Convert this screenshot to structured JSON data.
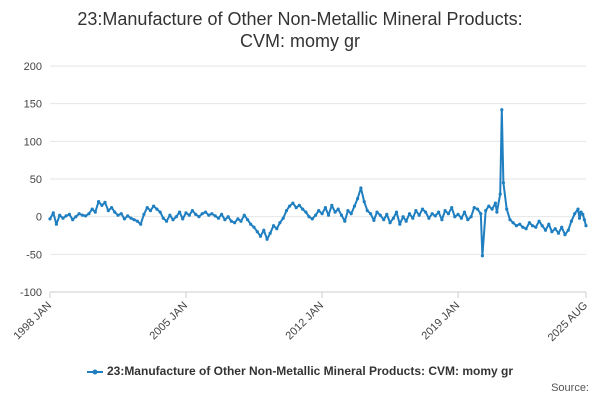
{
  "chart_data": {
    "type": "line",
    "title_lines": [
      "23:Manufacture of Other Non-Metallic Mineral Products:",
      "CVM: momy gr"
    ],
    "xlabel": "",
    "ylabel": "",
    "ylim": [
      -100,
      200
    ],
    "yticks": [
      -100,
      -50,
      0,
      50,
      100,
      150,
      200
    ],
    "x_range": [
      1998.0,
      2025.583
    ],
    "xticks": [
      {
        "label": "1998 JAN",
        "value": 1998.0
      },
      {
        "label": "2005 JAN",
        "value": 2005.0
      },
      {
        "label": "2012 JAN",
        "value": 2012.0
      },
      {
        "label": "2019 JAN",
        "value": 2019.0
      },
      {
        "label": "2025 AUG",
        "value": 2025.583
      }
    ],
    "grid": true,
    "legend_position": "bottom",
    "series": [
      {
        "name": "23:Manufacture of Other Non-Metallic Mineral Products: CVM: momy gr",
        "color": "#1f7fc0",
        "points": [
          [
            1998.0,
            -3
          ],
          [
            1998.17,
            5
          ],
          [
            1998.33,
            -10
          ],
          [
            1998.5,
            2
          ],
          [
            1998.67,
            -2
          ],
          [
            1998.83,
            1
          ],
          [
            1999.0,
            3
          ],
          [
            1999.17,
            -4
          ],
          [
            1999.33,
            0
          ],
          [
            1999.5,
            4
          ],
          [
            1999.67,
            2
          ],
          [
            1999.83,
            1
          ],
          [
            2000.0,
            4
          ],
          [
            2000.17,
            10
          ],
          [
            2000.33,
            6
          ],
          [
            2000.5,
            20
          ],
          [
            2000.67,
            15
          ],
          [
            2000.83,
            19
          ],
          [
            2001.0,
            8
          ],
          [
            2001.17,
            12
          ],
          [
            2001.33,
            6
          ],
          [
            2001.5,
            2
          ],
          [
            2001.67,
            4
          ],
          [
            2001.83,
            -3
          ],
          [
            2002.0,
            1
          ],
          [
            2002.17,
            -2
          ],
          [
            2002.33,
            -4
          ],
          [
            2002.5,
            -6
          ],
          [
            2002.67,
            -10
          ],
          [
            2002.83,
            3
          ],
          [
            2003.0,
            12
          ],
          [
            2003.17,
            8
          ],
          [
            2003.33,
            14
          ],
          [
            2003.5,
            10
          ],
          [
            2003.67,
            6
          ],
          [
            2003.83,
            -2
          ],
          [
            2004.0,
            -6
          ],
          [
            2004.17,
            2
          ],
          [
            2004.33,
            -4
          ],
          [
            2004.5,
            0
          ],
          [
            2004.67,
            6
          ],
          [
            2004.83,
            -3
          ],
          [
            2005.0,
            5
          ],
          [
            2005.17,
            2
          ],
          [
            2005.33,
            8
          ],
          [
            2005.5,
            3
          ],
          [
            2005.67,
            0
          ],
          [
            2005.83,
            4
          ],
          [
            2006.0,
            6
          ],
          [
            2006.17,
            2
          ],
          [
            2006.33,
            4
          ],
          [
            2006.5,
            1
          ],
          [
            2006.67,
            -2
          ],
          [
            2006.83,
            3
          ],
          [
            2007.0,
            -4
          ],
          [
            2007.17,
            0
          ],
          [
            2007.33,
            -6
          ],
          [
            2007.5,
            -8
          ],
          [
            2007.67,
            -3
          ],
          [
            2007.83,
            -6
          ],
          [
            2008.0,
            2
          ],
          [
            2008.17,
            -4
          ],
          [
            2008.33,
            -10
          ],
          [
            2008.5,
            -14
          ],
          [
            2008.67,
            -20
          ],
          [
            2008.83,
            -26
          ],
          [
            2009.0,
            -18
          ],
          [
            2009.17,
            -30
          ],
          [
            2009.33,
            -22
          ],
          [
            2009.5,
            -12
          ],
          [
            2009.67,
            -16
          ],
          [
            2009.83,
            -8
          ],
          [
            2010.0,
            -2
          ],
          [
            2010.17,
            8
          ],
          [
            2010.33,
            14
          ],
          [
            2010.5,
            18
          ],
          [
            2010.67,
            12
          ],
          [
            2010.83,
            15
          ],
          [
            2011.0,
            10
          ],
          [
            2011.17,
            6
          ],
          [
            2011.33,
            0
          ],
          [
            2011.5,
            -3
          ],
          [
            2011.67,
            2
          ],
          [
            2011.83,
            8
          ],
          [
            2012.0,
            4
          ],
          [
            2012.17,
            12
          ],
          [
            2012.33,
            2
          ],
          [
            2012.5,
            15
          ],
          [
            2012.67,
            6
          ],
          [
            2012.83,
            10
          ],
          [
            2013.0,
            2
          ],
          [
            2013.17,
            -6
          ],
          [
            2013.33,
            8
          ],
          [
            2013.5,
            4
          ],
          [
            2013.67,
            14
          ],
          [
            2013.83,
            24
          ],
          [
            2014.0,
            38
          ],
          [
            2014.17,
            20
          ],
          [
            2014.33,
            8
          ],
          [
            2014.5,
            4
          ],
          [
            2014.67,
            -5
          ],
          [
            2014.83,
            6
          ],
          [
            2015.0,
            2
          ],
          [
            2015.17,
            -4
          ],
          [
            2015.33,
            3
          ],
          [
            2015.5,
            -8
          ],
          [
            2015.67,
            -2
          ],
          [
            2015.83,
            6
          ],
          [
            2016.0,
            -10
          ],
          [
            2016.17,
            0
          ],
          [
            2016.33,
            -6
          ],
          [
            2016.5,
            4
          ],
          [
            2016.67,
            -2
          ],
          [
            2016.83,
            8
          ],
          [
            2017.0,
            2
          ],
          [
            2017.17,
            10
          ],
          [
            2017.33,
            6
          ],
          [
            2017.5,
            -2
          ],
          [
            2017.67,
            4
          ],
          [
            2017.83,
            1
          ],
          [
            2018.0,
            6
          ],
          [
            2018.17,
            -4
          ],
          [
            2018.33,
            8
          ],
          [
            2018.5,
            4
          ],
          [
            2018.67,
            12
          ],
          [
            2018.83,
            0
          ],
          [
            2019.0,
            3
          ],
          [
            2019.17,
            -2
          ],
          [
            2019.33,
            6
          ],
          [
            2019.5,
            -4
          ],
          [
            2019.67,
            0
          ],
          [
            2019.83,
            12
          ],
          [
            2020.0,
            10
          ],
          [
            2020.17,
            4
          ],
          [
            2020.25,
            -52
          ],
          [
            2020.42,
            8
          ],
          [
            2020.58,
            14
          ],
          [
            2020.75,
            10
          ],
          [
            2020.92,
            18
          ],
          [
            2021.0,
            6
          ],
          [
            2021.17,
            30
          ],
          [
            2021.25,
            142
          ],
          [
            2021.33,
            45
          ],
          [
            2021.5,
            10
          ],
          [
            2021.67,
            -4
          ],
          [
            2021.83,
            -8
          ],
          [
            2022.0,
            -12
          ],
          [
            2022.17,
            -10
          ],
          [
            2022.33,
            -14
          ],
          [
            2022.5,
            -16
          ],
          [
            2022.67,
            -8
          ],
          [
            2022.83,
            -12
          ],
          [
            2023.0,
            -14
          ],
          [
            2023.17,
            -6
          ],
          [
            2023.33,
            -12
          ],
          [
            2023.5,
            -18
          ],
          [
            2023.67,
            -10
          ],
          [
            2023.83,
            -20
          ],
          [
            2024.0,
            -16
          ],
          [
            2024.17,
            -22
          ],
          [
            2024.33,
            -14
          ],
          [
            2024.5,
            -24
          ],
          [
            2024.67,
            -18
          ],
          [
            2024.83,
            -6
          ],
          [
            2025.0,
            4
          ],
          [
            2025.17,
            10
          ],
          [
            2025.25,
            -2
          ],
          [
            2025.33,
            6
          ],
          [
            2025.42,
            3
          ],
          [
            2025.5,
            -4
          ],
          [
            2025.583,
            -12
          ]
        ]
      }
    ]
  },
  "source_label": "Source:"
}
